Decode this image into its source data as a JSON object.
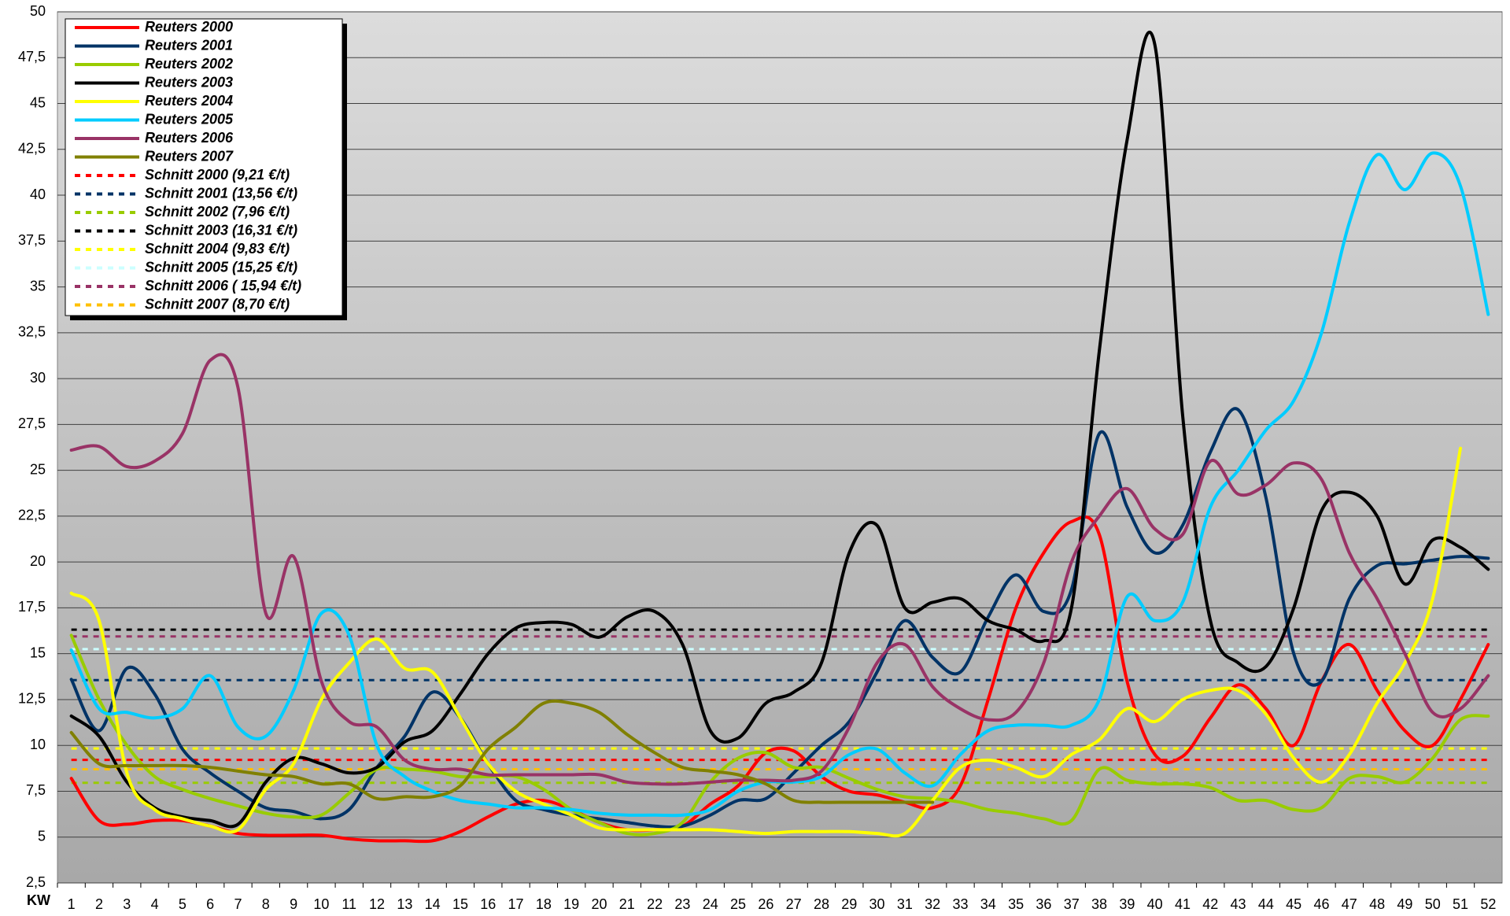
{
  "chart_data": {
    "type": "line",
    "x_label": "KW",
    "categories": [
      "1",
      "2",
      "3",
      "4",
      "5",
      "6",
      "7",
      "8",
      "9",
      "10",
      "11",
      "12",
      "13",
      "14",
      "15",
      "16",
      "17",
      "18",
      "19",
      "20",
      "21",
      "22",
      "23",
      "24",
      "25",
      "26",
      "27",
      "28",
      "29",
      "30",
      "31",
      "32",
      "33",
      "34",
      "35",
      "36",
      "37",
      "38",
      "39",
      "40",
      "41",
      "42",
      "43",
      "44",
      "45",
      "46",
      "47",
      "48",
      "49",
      "50",
      "51",
      "52"
    ],
    "ylim": [
      2.5,
      50
    ],
    "yticks": [
      {
        "value": 2.5,
        "label": "2,5"
      },
      5,
      {
        "value": 7.5,
        "label": "7,5"
      },
      10,
      {
        "value": 12.5,
        "label": "12,5"
      },
      15,
      {
        "value": 17.5,
        "label": "17,5"
      },
      20,
      {
        "value": 22.5,
        "label": "22,5"
      },
      25,
      {
        "value": 27.5,
        "label": "27,5"
      },
      30,
      {
        "value": 32.5,
        "label": "32,5"
      },
      35,
      {
        "value": 37.5,
        "label": "37,5"
      },
      40,
      {
        "value": 42.5,
        "label": "42,5"
      },
      45,
      {
        "value": 47.5,
        "label": "47,5"
      },
      50
    ],
    "grid": true,
    "legend": "upper left",
    "series": [
      {
        "name": "Reuters 2000",
        "color": "#ff0000",
        "values": [
          8.2,
          5.9,
          5.7,
          5.9,
          5.9,
          5.6,
          5.2,
          5.1,
          5.1,
          5.1,
          4.9,
          4.8,
          4.8,
          4.8,
          5.3,
          6.1,
          6.8,
          7.0,
          6.5,
          5.8,
          5.4,
          5.4,
          5.6,
          6.8,
          7.8,
          9.6,
          9.7,
          8.3,
          7.5,
          7.3,
          6.9,
          6.6,
          7.8,
          12.5,
          17.5,
          20.5,
          22.2,
          21.5,
          13.5,
          9.5,
          9.4,
          11.5,
          13.3,
          12.0,
          10.0,
          13.5,
          15.5,
          13.0,
          10.8,
          10.0,
          12.5,
          15.5
        ]
      },
      {
        "name": "Reuters 2001",
        "color": "#003366",
        "values": [
          13.6,
          10.8,
          14.2,
          12.8,
          9.8,
          8.5,
          7.5,
          6.6,
          6.4,
          6.0,
          6.5,
          8.8,
          10.5,
          12.9,
          11.5,
          9.0,
          7.0,
          6.5,
          6.2,
          6.0,
          5.8,
          5.6,
          5.6,
          6.2,
          7.0,
          7.1,
          8.5,
          10.0,
          11.3,
          14.0,
          16.8,
          14.8,
          14.0,
          17.0,
          19.3,
          17.3,
          18.5,
          27.0,
          23.0,
          20.5,
          22.0,
          26.0,
          28.3,
          23.5,
          15.0,
          13.5,
          18.0,
          19.8,
          19.9,
          20.1,
          20.3,
          20.2
        ]
      },
      {
        "name": "Reuters 2002",
        "color": "#99cc00",
        "values": [
          16.0,
          12.5,
          10.0,
          8.3,
          7.6,
          7.1,
          6.7,
          6.3,
          6.1,
          6.2,
          7.4,
          8.7,
          8.7,
          8.6,
          8.3,
          8.3,
          8.3,
          7.6,
          6.5,
          5.8,
          5.2,
          5.2,
          5.8,
          8.0,
          9.3,
          9.6,
          8.8,
          8.8,
          8.2,
          7.6,
          7.2,
          7.1,
          6.9,
          6.5,
          6.3,
          6.0,
          5.9,
          8.7,
          8.1,
          7.9,
          7.9,
          7.7,
          7.0,
          7.0,
          6.5,
          6.6,
          8.2,
          8.3,
          8.0,
          9.3,
          11.4,
          11.6
        ]
      },
      {
        "name": "Reuters 2003",
        "color": "#000000",
        "values": [
          11.6,
          10.5,
          8.0,
          6.6,
          6.1,
          5.9,
          5.7,
          8.0,
          9.3,
          9.0,
          8.5,
          8.8,
          10.2,
          10.8,
          12.8,
          15.0,
          16.4,
          16.7,
          16.6,
          15.9,
          17.0,
          17.3,
          15.5,
          10.8,
          10.4,
          12.3,
          12.9,
          14.5,
          20.5,
          22.0,
          17.5,
          17.8,
          18.0,
          16.8,
          16.3,
          15.7,
          17.5,
          31.5,
          43.0,
          48.2,
          28.0,
          16.8,
          14.5,
          14.3,
          17.5,
          22.8,
          23.8,
          22.5,
          18.8,
          21.2,
          20.8,
          19.6
        ]
      },
      {
        "name": "Reuters 2004",
        "color": "#ffff00",
        "values": [
          18.3,
          16.8,
          8.5,
          6.5,
          6.0,
          5.6,
          5.4,
          7.6,
          9.0,
          12.5,
          14.5,
          15.8,
          14.2,
          14.0,
          11.5,
          9.0,
          7.5,
          6.8,
          6.2,
          5.5,
          5.4,
          5.4,
          5.4,
          5.4,
          5.3,
          5.2,
          5.3,
          5.3,
          5.3,
          5.2,
          5.2,
          7.0,
          8.8,
          9.2,
          8.8,
          8.3,
          9.5,
          10.3,
          12.0,
          11.3,
          12.5,
          13.0,
          13.0,
          11.7,
          9.3,
          8.0,
          9.5,
          12.3,
          14.5,
          18.0,
          26.2,
          null
        ]
      },
      {
        "name": "Reuters 2005",
        "color": "#00ccff",
        "values": [
          15.2,
          12.0,
          11.8,
          11.5,
          12.0,
          13.8,
          11.0,
          10.5,
          13.0,
          17.2,
          16.0,
          10.0,
          8.3,
          7.5,
          7.0,
          6.8,
          6.6,
          6.6,
          6.5,
          6.3,
          6.2,
          6.2,
          6.2,
          6.5,
          7.5,
          8.0,
          8.0,
          8.3,
          9.5,
          9.8,
          8.5,
          7.8,
          9.5,
          10.8,
          11.1,
          11.1,
          11.1,
          12.5,
          18.1,
          16.8,
          17.8,
          23.0,
          25.0,
          27.2,
          28.8,
          32.5,
          38.5,
          42.2,
          40.3,
          42.3,
          40.5,
          33.5
        ]
      },
      {
        "name": "Reuters 2006",
        "color": "#993366",
        "values": [
          26.1,
          26.3,
          25.2,
          25.5,
          27.0,
          31.0,
          29.5,
          17.2,
          20.3,
          13.5,
          11.3,
          11.0,
          9.2,
          8.7,
          8.7,
          8.4,
          8.4,
          8.4,
          8.4,
          8.4,
          8.0,
          7.9,
          7.9,
          8.0,
          8.1,
          8.1,
          8.1,
          8.6,
          11.0,
          14.5,
          15.5,
          13.2,
          12.0,
          11.4,
          11.8,
          14.5,
          20.0,
          22.5,
          24.0,
          21.8,
          21.5,
          25.5,
          23.7,
          24.2,
          25.4,
          24.5,
          20.5,
          18.0,
          15.0,
          11.8,
          12.0,
          13.8
        ]
      },
      {
        "name": "Reuters 2007",
        "color": "#808000",
        "values": [
          10.7,
          9.0,
          8.9,
          8.9,
          8.9,
          8.8,
          8.6,
          8.4,
          8.3,
          7.9,
          7.9,
          7.1,
          7.2,
          7.2,
          7.8,
          9.8,
          11.0,
          12.3,
          12.3,
          11.8,
          10.6,
          9.6,
          8.8,
          8.6,
          8.4,
          7.9,
          7.0,
          6.9,
          6.9,
          6.9,
          6.9,
          6.9,
          null,
          null,
          null,
          null,
          null,
          null,
          null,
          null,
          null,
          null,
          null,
          null,
          null,
          null,
          null,
          null,
          null,
          null,
          null,
          null
        ]
      }
    ],
    "reference_lines": [
      {
        "name": "Schnitt 2000 (9,21 €/t)",
        "color": "#ff0000",
        "value": 9.21
      },
      {
        "name": "Schnitt 2001 (13,56 €/t)",
        "color": "#003366",
        "value": 13.56
      },
      {
        "name": "Schnitt 2002 (7,96 €/t)",
        "color": "#99cc00",
        "value": 7.96
      },
      {
        "name": "Schnitt 2003 (16,31 €/t)",
        "color": "#000000",
        "value": 16.31
      },
      {
        "name": "Schnitt 2004 (9,83 €/t)",
        "color": "#ffff00",
        "value": 9.83
      },
      {
        "name": "Schnitt 2005 (15,25 €/t)",
        "color": "#ccffff",
        "value": 15.25
      },
      {
        "name": "Schnitt 2006 ( 15,94 €/t)",
        "color": "#993366",
        "value": 15.94
      },
      {
        "name": "Schnitt 2007 (8,70 €/t)",
        "color": "#ffc000",
        "value": 8.7
      }
    ]
  }
}
